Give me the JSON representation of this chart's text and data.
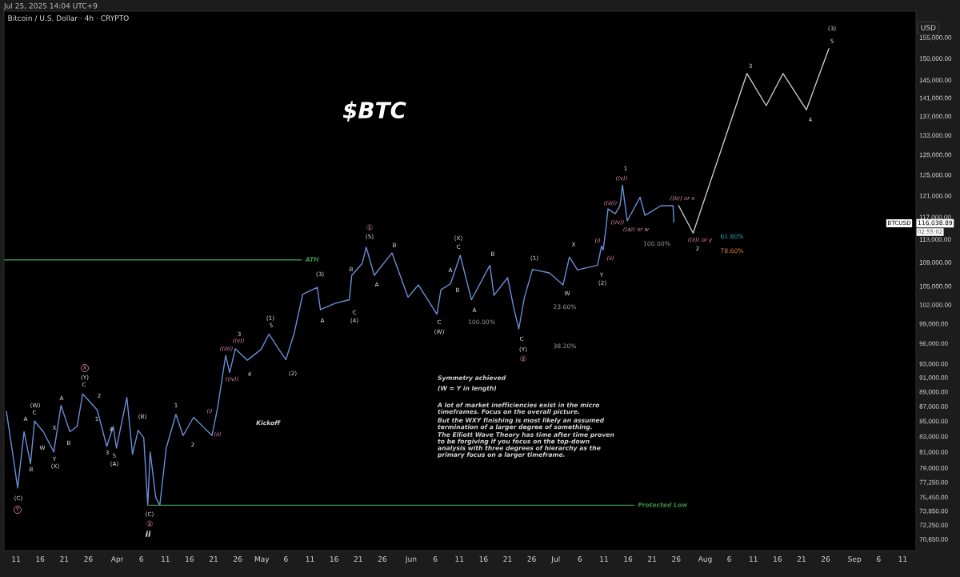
{
  "chart_data": {
    "type": "line",
    "title": "Bitcoin / U.S. Dollar · 4h · CRYPTO",
    "ylabel": "USD",
    "log": "y",
    "xlim": [
      "2025-03-08T12:00",
      "2025-09-13T18:00"
    ],
    "ylim": [
      69400,
      161500
    ],
    "xticks": [
      {
        "value": "2025-03-11",
        "label": "11"
      },
      {
        "value": "2025-03-16",
        "label": "16"
      },
      {
        "value": "2025-03-21",
        "label": "21"
      },
      {
        "value": "2025-03-26",
        "label": "26"
      },
      {
        "value": "2025-04-01",
        "label": "Apr"
      },
      {
        "value": "2025-04-06",
        "label": "6"
      },
      {
        "value": "2025-04-11",
        "label": "11"
      },
      {
        "value": "2025-04-16",
        "label": "16"
      },
      {
        "value": "2025-04-21",
        "label": "21"
      },
      {
        "value": "2025-04-26",
        "label": "26"
      },
      {
        "value": "2025-05-01",
        "label": "May"
      },
      {
        "value": "2025-05-06",
        "label": "6"
      },
      {
        "value": "2025-05-11",
        "label": "11"
      },
      {
        "value": "2025-05-16",
        "label": "16"
      },
      {
        "value": "2025-05-21",
        "label": "21"
      },
      {
        "value": "2025-05-26",
        "label": "26"
      },
      {
        "value": "2025-06-01",
        "label": "Jun"
      },
      {
        "value": "2025-06-06",
        "label": "6"
      },
      {
        "value": "2025-06-11",
        "label": "11"
      },
      {
        "value": "2025-06-16",
        "label": "16"
      },
      {
        "value": "2025-06-21",
        "label": "21"
      },
      {
        "value": "2025-06-26",
        "label": "26"
      },
      {
        "value": "2025-07-01",
        "label": "Jul"
      },
      {
        "value": "2025-07-06",
        "label": "6"
      },
      {
        "value": "2025-07-11",
        "label": "11"
      },
      {
        "value": "2025-07-16",
        "label": "16"
      },
      {
        "value": "2025-07-21",
        "label": "21"
      },
      {
        "value": "2025-07-26",
        "label": "26"
      },
      {
        "value": "2025-08-01",
        "label": "Aug"
      },
      {
        "value": "2025-08-06",
        "label": "6"
      },
      {
        "value": "2025-08-11",
        "label": "11"
      },
      {
        "value": "2025-08-16",
        "label": "16"
      },
      {
        "value": "2025-08-21",
        "label": "21"
      },
      {
        "value": "2025-08-26",
        "label": "26"
      },
      {
        "value": "2025-09-01",
        "label": "Sep"
      },
      {
        "value": "2025-09-06",
        "label": "6"
      },
      {
        "value": "2025-09-11",
        "label": "11"
      }
    ],
    "yticks": [
      {
        "value": 155000,
        "label": "155,000.00"
      },
      {
        "value": 150000,
        "label": "150,000.00"
      },
      {
        "value": 145000,
        "label": "145,000.00"
      },
      {
        "value": 141000,
        "label": "141,000.00"
      },
      {
        "value": 137000,
        "label": "137,000.00"
      },
      {
        "value": 133000,
        "label": "133,000.00"
      },
      {
        "value": 129000,
        "label": "129,000.00"
      },
      {
        "value": 125000,
        "label": "125,000.00"
      },
      {
        "value": 121000,
        "label": "121,000.00"
      },
      {
        "value": 117000,
        "label": "117,000.00"
      },
      {
        "value": 113000,
        "label": "113,000.00"
      },
      {
        "value": 109000,
        "label": "109,000.00"
      },
      {
        "value": 105000,
        "label": "105,000.00"
      },
      {
        "value": 102000,
        "label": "102,000.00"
      },
      {
        "value": 99000,
        "label": "99,000.00"
      },
      {
        "value": 96000,
        "label": "96,000.00"
      },
      {
        "value": 93000,
        "label": "93,000.00"
      },
      {
        "value": 91000,
        "label": "91,000.00"
      },
      {
        "value": 89000,
        "label": "89,000.00"
      },
      {
        "value": 87000,
        "label": "87,000.00"
      },
      {
        "value": 85000,
        "label": "85,000.00"
      },
      {
        "value": 83000,
        "label": "83,000.00"
      },
      {
        "value": 81000,
        "label": "81,000.00"
      },
      {
        "value": 79000,
        "label": "79,000.00"
      },
      {
        "value": 77250,
        "label": "77,250.00"
      },
      {
        "value": 75450,
        "label": "75,450.00"
      },
      {
        "value": 73850,
        "label": "73,850.00"
      },
      {
        "value": 72250,
        "label": "72,250.00"
      },
      {
        "value": 70650,
        "label": "70,650.00"
      }
    ],
    "series": [
      {
        "color": "#6a8fd8",
        "x": [
          "2025-03-09",
          "2025-03-10T12:00",
          "2025-03-11T08:00",
          "2025-03-12T16:00",
          "2025-03-14",
          "2025-03-14T20:00",
          "2025-03-16T16:00",
          "2025-03-18T20:00",
          "2025-03-20T08:00",
          "2025-03-22T04:00",
          "2025-03-23T16:00",
          "2025-03-24T20:00",
          "2025-03-27T20:00",
          "2025-03-29T20:00",
          "2025-03-31T04:00",
          "2025-03-31T20:00",
          "2025-04-03",
          "2025-04-04T04:00",
          "2025-04-05T08:00",
          "2025-04-06T12:00",
          "2025-04-07T08:00",
          "2025-04-07T20:00",
          "2025-04-09",
          "2025-04-09T20:00",
          "2025-04-11T04:00",
          "2025-04-13T04:00",
          "2025-04-14T16:00",
          "2025-04-16T20:00",
          "2025-04-20T16:00",
          "2025-04-21T20:00",
          "2025-04-23T12:00",
          "2025-04-24T08:00",
          "2025-04-25T12:00",
          "2025-04-28",
          "2025-04-30T20:00",
          "2025-05-02T12:00",
          "2025-05-04T20:00",
          "2025-05-06",
          "2025-05-07T16:00",
          "2025-05-09T12:00",
          "2025-05-12T12:00",
          "2025-05-13T04:00",
          "2025-05-16T04:00",
          "2025-05-19T04:00",
          "2025-05-19T16:00",
          "2025-05-21T20:00",
          "2025-05-22T16:00",
          "2025-05-24T08:00",
          "2025-05-28",
          "2025-05-31T08:00",
          "2025-06-02T12:00",
          "2025-06-06T08:00",
          "2025-06-07T04:00",
          "2025-06-09T04:00",
          "2025-06-11T04:00",
          "2025-06-13T12:00",
          "2025-06-17T08:00",
          "2025-06-18T04:00",
          "2025-06-21",
          "2025-06-22T08:00",
          "2025-06-23T08:00",
          "2025-06-24T12:00",
          "2025-06-26T04:00",
          "2025-06-29T16:00",
          "2025-07-02T12:00",
          "2025-07-03T20:00",
          "2025-07-05T12:00",
          "2025-07-09T16:00",
          "2025-07-10T12:00",
          "2025-07-10T20:00",
          "2025-07-11T08:00",
          "2025-07-11T20:00",
          "2025-07-13T08:00",
          "2025-07-14T08:00",
          "2025-07-14T20:00",
          "2025-07-15T20:00",
          "2025-07-18T12:00",
          "2025-07-19T12:00",
          "2025-07-22T20:00",
          "2025-07-25T08:00",
          "2025-07-25T12:00"
        ],
        "values": [
          86300,
          80000,
          76550,
          83600,
          79500,
          85000,
          83600,
          81000,
          87100,
          83600,
          84300,
          88700,
          86500,
          81700,
          84300,
          81500,
          88200,
          80700,
          83800,
          82800,
          74500,
          81000,
          75400,
          74500,
          81500,
          85900,
          83100,
          85500,
          83100,
          86800,
          94200,
          91700,
          95200,
          93500,
          95100,
          97400,
          94800,
          93600,
          97400,
          103700,
          104800,
          101200,
          102200,
          102800,
          106800,
          108800,
          111600,
          106800,
          110600,
          103200,
          105200,
          100500,
          104400,
          105400,
          110200,
          102800,
          108500,
          103500,
          106400,
          101300,
          98200,
          103200,
          107800,
          107200,
          105200,
          109900,
          107700,
          108500,
          111800,
          111100,
          114400,
          118500,
          117600,
          119100,
          123000,
          116300,
          120700,
          117300,
          119100,
          119100,
          116038.89
        ]
      },
      {
        "color": "#c8c8d0",
        "x": [
          "2025-07-26T12:00",
          "2025-07-29T12:00",
          "2025-08-09T16:00",
          "2025-08-13T16:00",
          "2025-08-17T04:00",
          "2025-08-22",
          "2025-08-26T16:00"
        ],
        "values": [
          119100,
          114100,
          146500,
          139300,
          146500,
          138400,
          152300
        ]
      },
      {
        "name": "ATH",
        "color": "#3f8f4a",
        "x": [
          "2025-03-08T12:00",
          "2025-05-09T04:00"
        ],
        "values": [
          109400,
          109400
        ]
      },
      {
        "name": "Protected Low",
        "color": "#3f8f4a",
        "x": [
          "2025-04-07T16:00",
          "2025-07-17T04:00"
        ],
        "values": [
          74500,
          74500
        ]
      }
    ],
    "annotations": [
      "Jul 25, 2025 14:04 UTC+9",
      "$BTC",
      "Symmetry achieved",
      "(W = Y in length)",
      "A lot of market inefficiencies exist in the micro\ntimeframes. Focus on the overall picture.",
      "But the WXY finishing is most likely an assumed\ntermination of a larger degree of something.",
      "The Elliott Wave Theory has time after time proven\nto be forgiving if you focus on the top-down\nanalysis with three degrees of hierarchy as the\nprimary focus on a larger timeframe.",
      "(W)",
      "C",
      "A",
      "B",
      "(C)",
      "Y",
      "W",
      "X",
      "Y",
      "(X)",
      "A",
      "B",
      "X",
      "(Y)",
      "C",
      "2",
      "1",
      "4",
      "3",
      "5",
      "(A)",
      "(B)",
      "(C)",
      "②",
      "ii",
      "1",
      "2",
      "(i)",
      "(ii)",
      "((iii))",
      "((iv))",
      "((v))",
      "3",
      "4",
      "(1)",
      "5",
      "(2)",
      "Kickoff",
      "(3)",
      "A",
      "B",
      "C",
      "(4)",
      "①",
      "(5)",
      "A",
      "B",
      "C",
      "(W)",
      "A",
      "B",
      "(X)",
      "C",
      "A",
      "B",
      "C",
      "(Y)",
      "②",
      "(1)",
      "W",
      "X",
      "Y",
      "(2)",
      "(i)",
      "(ii)",
      "1",
      "((v))",
      "((iii))",
      "((iv))",
      "((a)) or w",
      "((b)) or x",
      "((ii)) or y",
      "2",
      "100.00%",
      "61.80%",
      "78.60%",
      "23.60%",
      "100.00%",
      "38.20%",
      "3",
      "4",
      "5",
      "(3)",
      "BTCUSD",
      "116,038.89",
      "02:55:02"
    ]
  }
}
